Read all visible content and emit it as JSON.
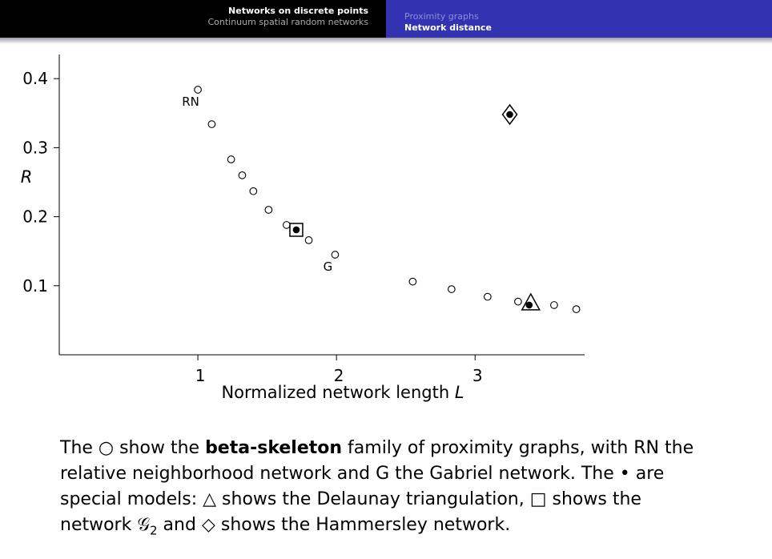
{
  "header": {
    "left": [
      "Networks on discrete points",
      "Continuum spatial random networks"
    ],
    "right": [
      "Proximity graphs",
      "Network distance"
    ]
  },
  "chart_data": {
    "type": "scatter",
    "x_label": "Normalized network length ",
    "x_label_symbol": "L",
    "y_label": "R",
    "xlim": [
      0,
      3.79
    ],
    "ylim": [
      0,
      0.435
    ],
    "xticks": [
      1,
      2,
      3
    ],
    "yticks": [
      0.1,
      0.2,
      0.3,
      0.4
    ],
    "grid": false,
    "series": [
      {
        "marker": "circle",
        "color": "#000000",
        "x": [
          1.0,
          1.1,
          1.24,
          1.32,
          1.4,
          1.51,
          1.64,
          1.8,
          1.99,
          2.55,
          2.83,
          3.09,
          3.31,
          3.57,
          3.73
        ],
        "y": [
          0.384,
          0.334,
          0.283,
          0.26,
          0.237,
          0.21,
          0.188,
          0.166,
          0.145,
          0.106,
          0.095,
          0.084,
          0.077,
          0.072,
          0.066
        ],
        "point_labels": [
          "RN",
          null,
          null,
          null,
          null,
          null,
          null,
          null,
          "G",
          null,
          null,
          null,
          null,
          null,
          null
        ]
      },
      {
        "marker": "triangle",
        "color": "#000000",
        "x": [
          3.39
        ],
        "y": [
          0.072
        ]
      },
      {
        "marker": "square",
        "color": "#000000",
        "x": [
          1.71
        ],
        "y": [
          0.181
        ]
      },
      {
        "marker": "diamond",
        "color": "#000000",
        "x": [
          3.25
        ],
        "y": [
          0.348
        ]
      }
    ]
  },
  "caption": [
    {
      "text": "The ○ show the "
    },
    {
      "text": "beta-skeleton",
      "bold": true
    },
    {
      "text": " family of proximity graphs, with RN the relative neighborhood network and G the Gabriel network. The • are special models: △ shows the Delaunay triangulation, □ shows the network "
    },
    {
      "text": "𝒢"
    },
    {
      "text": "2",
      "sub": true
    },
    {
      "text": " and ◇ shows the Hammersley network."
    }
  ]
}
